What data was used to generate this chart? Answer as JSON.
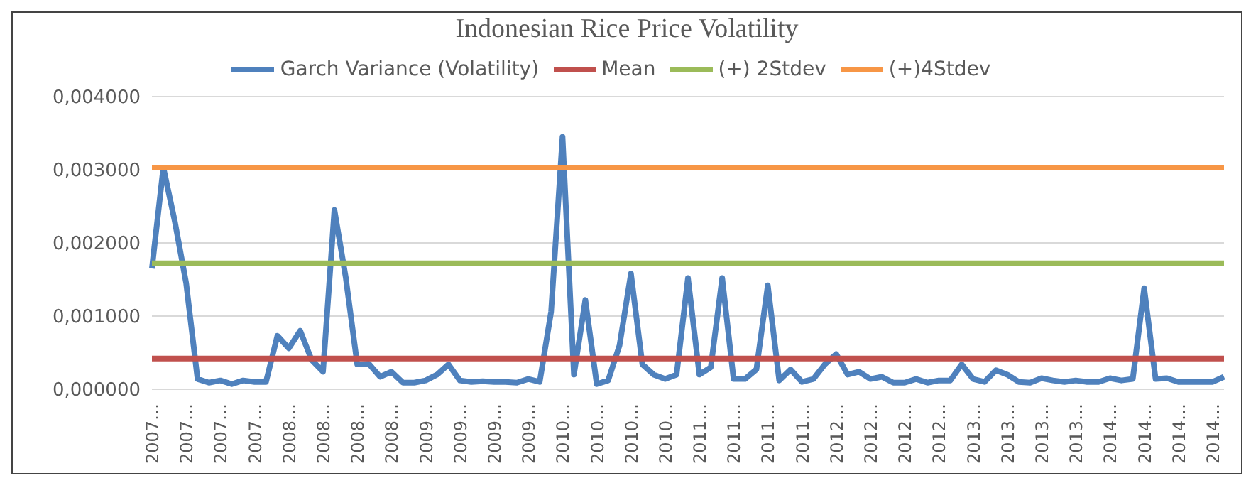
{
  "chart_data": {
    "type": "line",
    "title": "Indonesian Rice Price Volatility",
    "categories": [
      "2007…",
      null,
      null,
      "2007…",
      null,
      null,
      "2007…",
      null,
      null,
      "2007…",
      null,
      null,
      "2008…",
      null,
      null,
      "2008…",
      null,
      null,
      "2008…",
      null,
      null,
      "2008…",
      null,
      null,
      "2009…",
      null,
      null,
      "2009…",
      null,
      null,
      "2009…",
      null,
      null,
      "2009…",
      null,
      null,
      "2010…",
      null,
      null,
      "2010…",
      null,
      null,
      "2010…",
      null,
      null,
      "2010…",
      null,
      null,
      "2011…",
      null,
      null,
      "2011…",
      null,
      null,
      "2011…",
      null,
      null,
      "2011…",
      null,
      null,
      "2012…",
      null,
      null,
      "2012…",
      null,
      null,
      "2012…",
      null,
      null,
      "2012…",
      null,
      null,
      "2013…",
      null,
      null,
      "2013…",
      null,
      null,
      "2013…",
      null,
      null,
      "2013…",
      null,
      null,
      "2014…",
      null,
      null,
      "2014…",
      null,
      null,
      "2014…",
      null,
      null,
      "2014…",
      null
    ],
    "series": [
      {
        "name": "Garch Variance (Volatility)",
        "color": "#4f81bd",
        "values": [
          0.00165,
          0.00303,
          0.0023,
          0.00145,
          0.00014,
          9e-05,
          0.00012,
          7e-05,
          0.00012,
          0.0001,
          0.0001,
          0.00073,
          0.00056,
          0.0008,
          0.0004,
          0.00024,
          0.00245,
          0.00152,
          0.00034,
          0.00035,
          0.00017,
          0.00024,
          9e-05,
          9e-05,
          0.00012,
          0.0002,
          0.00034,
          0.00012,
          0.0001,
          0.00011,
          0.0001,
          0.0001,
          9e-05,
          0.00014,
          0.0001,
          0.00106,
          0.00345,
          0.0002,
          0.00122,
          7e-05,
          0.00012,
          0.0006,
          0.00158,
          0.00034,
          0.0002,
          0.00014,
          0.0002,
          0.00152,
          0.0002,
          0.0003,
          0.00152,
          0.00014,
          0.00014,
          0.00027,
          0.00142,
          0.00012,
          0.00027,
          0.0001,
          0.00014,
          0.00034,
          0.00048,
          0.0002,
          0.00024,
          0.00014,
          0.00017,
          9e-05,
          9e-05,
          0.00014,
          9e-05,
          0.00012,
          0.00012,
          0.00034,
          0.00014,
          0.0001,
          0.00026,
          0.0002,
          0.0001,
          9e-05,
          0.00015,
          0.00012,
          0.0001,
          0.00012,
          0.0001,
          0.0001,
          0.00015,
          0.00012,
          0.00014,
          0.00138,
          0.00014,
          0.00015,
          0.0001,
          0.0001,
          0.0001,
          0.0001,
          0.00017
        ]
      },
      {
        "name": "Mean",
        "color": "#c0504d",
        "values": [
          0.00042,
          0.00042,
          0.00042,
          0.00042,
          0.00042,
          0.00042,
          0.00042,
          0.00042,
          0.00042,
          0.00042,
          0.00042,
          0.00042,
          0.00042,
          0.00042,
          0.00042,
          0.00042,
          0.00042,
          0.00042,
          0.00042,
          0.00042,
          0.00042,
          0.00042,
          0.00042,
          0.00042,
          0.00042,
          0.00042,
          0.00042,
          0.00042,
          0.00042,
          0.00042,
          0.00042,
          0.00042,
          0.00042,
          0.00042,
          0.00042,
          0.00042,
          0.00042,
          0.00042,
          0.00042,
          0.00042,
          0.00042,
          0.00042,
          0.00042,
          0.00042,
          0.00042,
          0.00042,
          0.00042,
          0.00042,
          0.00042,
          0.00042,
          0.00042,
          0.00042,
          0.00042,
          0.00042,
          0.00042,
          0.00042,
          0.00042,
          0.00042,
          0.00042,
          0.00042,
          0.00042,
          0.00042,
          0.00042,
          0.00042,
          0.00042,
          0.00042,
          0.00042,
          0.00042,
          0.00042,
          0.00042,
          0.00042,
          0.00042,
          0.00042,
          0.00042,
          0.00042,
          0.00042,
          0.00042,
          0.00042,
          0.00042,
          0.00042,
          0.00042,
          0.00042,
          0.00042,
          0.00042,
          0.00042,
          0.00042,
          0.00042,
          0.00042,
          0.00042,
          0.00042,
          0.00042,
          0.00042,
          0.00042,
          0.00042,
          0.00042
        ]
      },
      {
        "name": "(+) 2Stdev",
        "color": "#9bbb59",
        "values": [
          0.00172,
          0.00172,
          0.00172,
          0.00172,
          0.00172,
          0.00172,
          0.00172,
          0.00172,
          0.00172,
          0.00172,
          0.00172,
          0.00172,
          0.00172,
          0.00172,
          0.00172,
          0.00172,
          0.00172,
          0.00172,
          0.00172,
          0.00172,
          0.00172,
          0.00172,
          0.00172,
          0.00172,
          0.00172,
          0.00172,
          0.00172,
          0.00172,
          0.00172,
          0.00172,
          0.00172,
          0.00172,
          0.00172,
          0.00172,
          0.00172,
          0.00172,
          0.00172,
          0.00172,
          0.00172,
          0.00172,
          0.00172,
          0.00172,
          0.00172,
          0.00172,
          0.00172,
          0.00172,
          0.00172,
          0.00172,
          0.00172,
          0.00172,
          0.00172,
          0.00172,
          0.00172,
          0.00172,
          0.00172,
          0.00172,
          0.00172,
          0.00172,
          0.00172,
          0.00172,
          0.00172,
          0.00172,
          0.00172,
          0.00172,
          0.00172,
          0.00172,
          0.00172,
          0.00172,
          0.00172,
          0.00172,
          0.00172,
          0.00172,
          0.00172,
          0.00172,
          0.00172,
          0.00172,
          0.00172,
          0.00172,
          0.00172,
          0.00172,
          0.00172,
          0.00172,
          0.00172,
          0.00172,
          0.00172,
          0.00172,
          0.00172,
          0.00172,
          0.00172,
          0.00172,
          0.00172,
          0.00172,
          0.00172,
          0.00172,
          0.00172
        ]
      },
      {
        "name": "(+)4Stdev",
        "color": "#f79646",
        "values": [
          0.00303,
          0.00303,
          0.00303,
          0.00303,
          0.00303,
          0.00303,
          0.00303,
          0.00303,
          0.00303,
          0.00303,
          0.00303,
          0.00303,
          0.00303,
          0.00303,
          0.00303,
          0.00303,
          0.00303,
          0.00303,
          0.00303,
          0.00303,
          0.00303,
          0.00303,
          0.00303,
          0.00303,
          0.00303,
          0.00303,
          0.00303,
          0.00303,
          0.00303,
          0.00303,
          0.00303,
          0.00303,
          0.00303,
          0.00303,
          0.00303,
          0.00303,
          0.00303,
          0.00303,
          0.00303,
          0.00303,
          0.00303,
          0.00303,
          0.00303,
          0.00303,
          0.00303,
          0.00303,
          0.00303,
          0.00303,
          0.00303,
          0.00303,
          0.00303,
          0.00303,
          0.00303,
          0.00303,
          0.00303,
          0.00303,
          0.00303,
          0.00303,
          0.00303,
          0.00303,
          0.00303,
          0.00303,
          0.00303,
          0.00303,
          0.00303,
          0.00303,
          0.00303,
          0.00303,
          0.00303,
          0.00303,
          0.00303,
          0.00303,
          0.00303,
          0.00303,
          0.00303,
          0.00303,
          0.00303,
          0.00303,
          0.00303,
          0.00303,
          0.00303,
          0.00303,
          0.00303,
          0.00303,
          0.00303,
          0.00303,
          0.00303,
          0.00303,
          0.00303,
          0.00303,
          0.00303,
          0.00303,
          0.00303,
          0.00303,
          0.00303
        ]
      }
    ],
    "ylim": [
      0,
      0.004
    ],
    "yticks": [
      {
        "value": 0,
        "label": "0,000000"
      },
      {
        "value": 0.001,
        "label": "0,001000"
      },
      {
        "value": 0.002,
        "label": "0,002000"
      },
      {
        "value": 0.003,
        "label": "0,003000"
      },
      {
        "value": 0.004,
        "label": "0,004000"
      }
    ],
    "grid": "y",
    "legend": "top",
    "marker": "none",
    "line_style": "solid"
  }
}
